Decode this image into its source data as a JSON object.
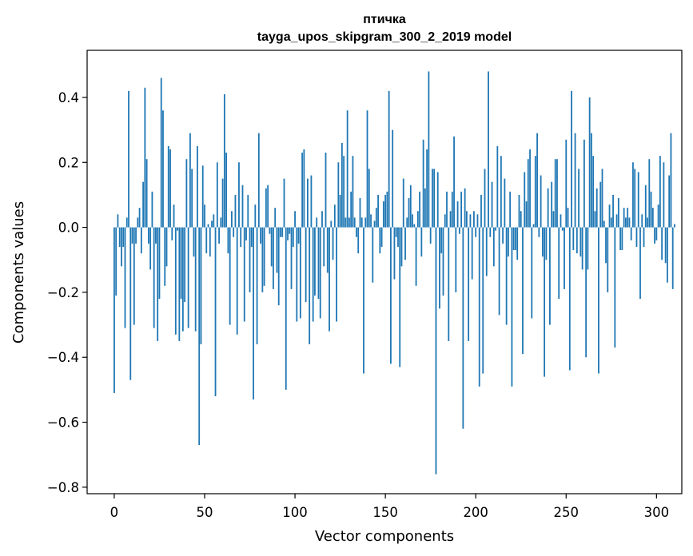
{
  "chart_data": {
    "type": "bar",
    "title": "птичка",
    "subtitle": "tayga_upos_skipgram_300_2_2019 model",
    "xlabel": "Vector components",
    "ylabel": "Components values",
    "xlim": [
      -15,
      314
    ],
    "ylim": [
      -0.82,
      0.545
    ],
    "xticks": [
      0,
      50,
      100,
      150,
      200,
      250,
      300
    ],
    "yticks": [
      0.4,
      0.2,
      0.0,
      -0.2,
      -0.4,
      -0.6,
      -0.8
    ],
    "ytick_labels": [
      "0.4",
      "0.2",
      "0.0",
      "−0.2",
      "−0.4",
      "−0.6",
      "−0.8"
    ],
    "bar_color": "#1f77b4",
    "values": [
      -0.51,
      -0.21,
      0.04,
      -0.06,
      -0.12,
      -0.06,
      -0.31,
      0.03,
      0.42,
      -0.47,
      -0.05,
      -0.3,
      -0.05,
      0.03,
      0.06,
      -0.08,
      0.14,
      0.43,
      0.21,
      -0.05,
      -0.13,
      0.11,
      -0.31,
      -0.05,
      -0.35,
      -0.22,
      0.46,
      0.36,
      -0.18,
      -0.12,
      0.25,
      0.24,
      -0.04,
      0.07,
      -0.33,
      -0.01,
      -0.35,
      -0.22,
      -0.32,
      -0.23,
      0.21,
      -0.31,
      0.29,
      0.18,
      -0.09,
      -0.32,
      0.25,
      -0.67,
      -0.36,
      0.19,
      0.07,
      -0.08,
      0.01,
      -0.09,
      0.02,
      0.04,
      -0.52,
      0.2,
      -0.05,
      0.03,
      0.15,
      0.41,
      0.23,
      -0.08,
      -0.3,
      0.05,
      -0.03,
      0.1,
      -0.33,
      0.2,
      -0.06,
      0.13,
      -0.29,
      -0.04,
      0.1,
      -0.2,
      -0.06,
      -0.53,
      0.07,
      -0.36,
      0.29,
      -0.05,
      -0.2,
      -0.18,
      0.12,
      0.13,
      -0.02,
      -0.12,
      -0.19,
      0.06,
      -0.14,
      -0.24,
      -0.03,
      -0.03,
      0.15,
      -0.5,
      -0.04,
      -0.02,
      -0.19,
      -0.06,
      0.05,
      -0.29,
      -0.05,
      -0.28,
      0.23,
      0.24,
      -0.23,
      0.15,
      -0.36,
      0.16,
      -0.29,
      -0.21,
      0.03,
      -0.22,
      -0.28,
      0.05,
      -0.12,
      0.23,
      -0.14,
      -0.32,
      0.02,
      -0.1,
      0.07,
      -0.29,
      0.2,
      0.1,
      0.26,
      0.22,
      0.03,
      0.36,
      0.03,
      0.11,
      0.22,
      0.03,
      -0.03,
      -0.08,
      0.09,
      0.03,
      -0.45,
      0.03,
      0.36,
      0.18,
      0.04,
      -0.17,
      0.02,
      0.06,
      0.1,
      -0.08,
      -0.06,
      0.08,
      0.1,
      0.11,
      0.42,
      -0.42,
      0.3,
      -0.16,
      -0.03,
      -0.06,
      -0.43,
      -0.12,
      0.15,
      -0.1,
      0.03,
      0.09,
      0.13,
      0.04,
      0.01,
      -0.18,
      0.05,
      0.11,
      -0.09,
      0.27,
      0.12,
      0.24,
      0.48,
      -0.05,
      0.18,
      0.18,
      -0.76,
      0.17,
      -0.25,
      -0.08,
      -0.21,
      0.04,
      0.11,
      -0.35,
      0.05,
      0.11,
      0.28,
      -0.2,
      0.08,
      -0.02,
      0.11,
      -0.62,
      0.12,
      0.05,
      -0.35,
      0.04,
      -0.16,
      0.05,
      -0.03,
      0.04,
      -0.49,
      0.1,
      -0.45,
      0.18,
      -0.15,
      0.48,
      -0.03,
      0.14,
      -0.12,
      -0.01,
      0.25,
      -0.27,
      0.22,
      -0.05,
      0.15,
      -0.3,
      -0.09,
      0.11,
      -0.49,
      -0.07,
      -0.07,
      -0.1,
      0.1,
      0.05,
      -0.39,
      0.17,
      0.08,
      0.21,
      0.24,
      -0.28,
      0.01,
      0.22,
      0.29,
      -0.03,
      0.16,
      -0.09,
      -0.46,
      -0.1,
      0.12,
      -0.3,
      0.14,
      0.05,
      0.21,
      0.21,
      -0.22,
      0.04,
      -0.01,
      -0.19,
      0.27,
      0.06,
      -0.44,
      0.42,
      -0.07,
      0.29,
      -0.08,
      0.18,
      -0.09,
      -0.13,
      0.27,
      -0.4,
      -0.13,
      0.4,
      0.29,
      0.22,
      0.05,
      0.12,
      -0.45,
      0.14,
      0.18,
      0.02,
      -0.11,
      -0.2,
      0.07,
      0.03,
      0.1,
      -0.37,
      0.04,
      0.09,
      -0.07,
      -0.07,
      0.06,
      0.03,
      0.06,
      0.03,
      -0.04,
      0.2,
      0.18,
      -0.06,
      0.17,
      -0.22,
      0.04,
      -0.06,
      0.13,
      0.03,
      0.21,
      0.11,
      0.06,
      -0.05,
      -0.04,
      0.07,
      0.22,
      -0.1,
      0.2,
      -0.11,
      -0.17,
      0.16,
      0.29,
      -0.19,
      0.01
    ]
  }
}
